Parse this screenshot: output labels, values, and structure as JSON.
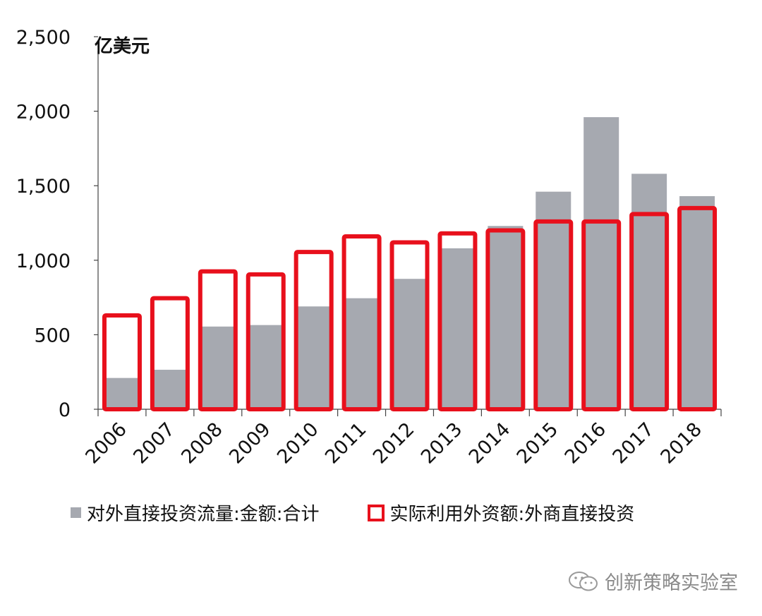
{
  "chart_data": {
    "type": "bar",
    "unit_label": "亿美元",
    "categories": [
      "2006",
      "2007",
      "2008",
      "2009",
      "2010",
      "2011",
      "2012",
      "2013",
      "2014",
      "2015",
      "2016",
      "2017",
      "2018"
    ],
    "ylim": [
      0,
      2500
    ],
    "yticks": [
      0,
      500,
      1000,
      1500,
      2000,
      2500
    ],
    "ytick_labels": [
      "0",
      "500",
      "1,000",
      "1,500",
      "2,000",
      "2,500"
    ],
    "series": [
      {
        "name": "对外直接投资流量:金额:合计",
        "style": "filled-bar",
        "color": "#a6a9b0",
        "values": [
          210,
          265,
          555,
          565,
          690,
          745,
          875,
          1080,
          1230,
          1460,
          1960,
          1580,
          1430
        ]
      },
      {
        "name": "实际利用外资额:外商直接投资",
        "style": "outline-bar",
        "color": "#e8101c",
        "values": [
          630,
          745,
          925,
          905,
          1055,
          1160,
          1120,
          1180,
          1200,
          1260,
          1260,
          1310,
          1350
        ]
      }
    ],
    "grid": false,
    "legend_position": "bottom"
  },
  "watermark": {
    "text": "创新策略实验室",
    "icon": "wechat-icon"
  }
}
